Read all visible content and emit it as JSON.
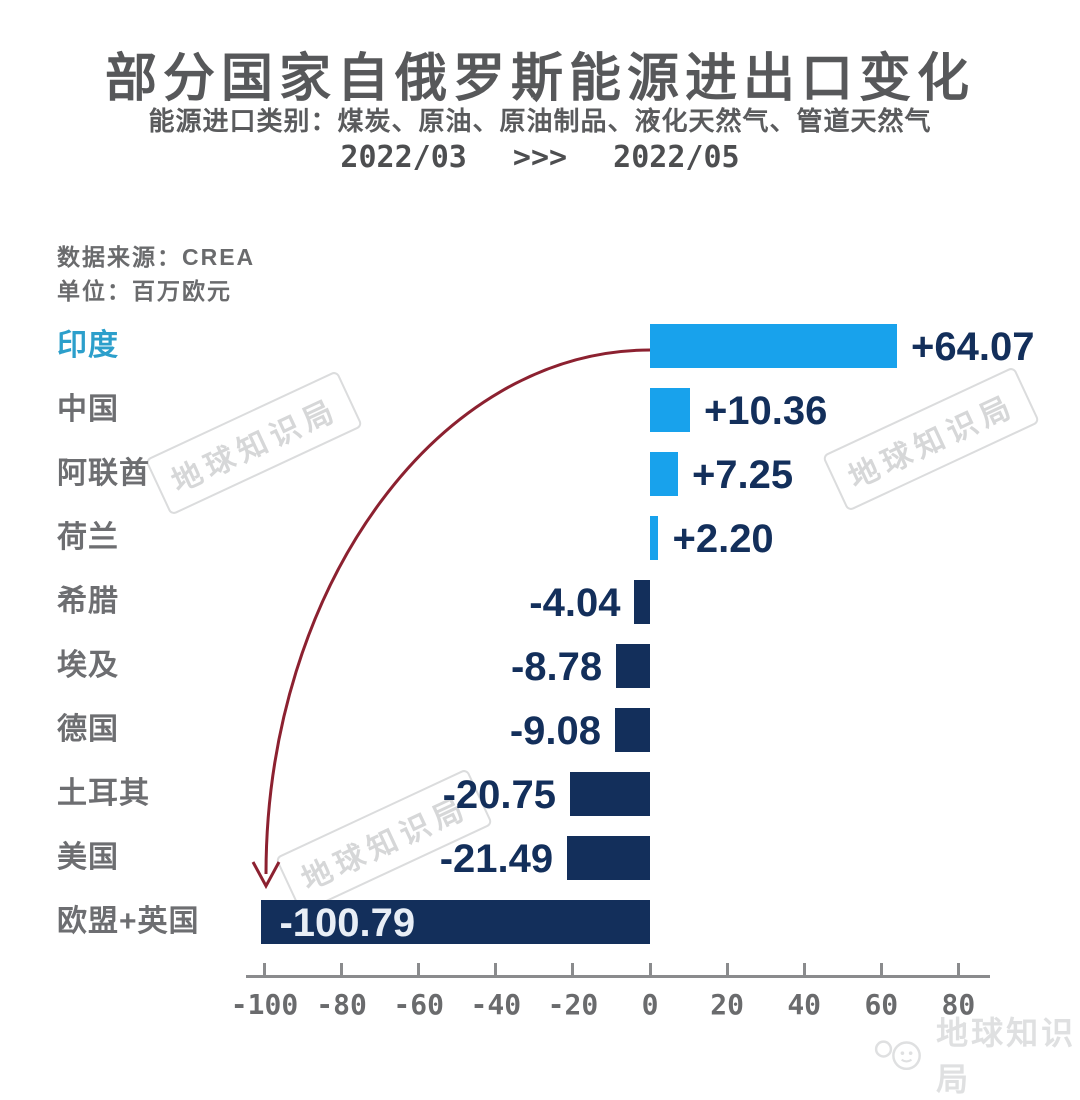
{
  "header": {
    "title": "部分国家自俄罗斯能源进出口变化",
    "subtitle": "能源进口类别：煤炭、原油、原油制品、液化天然气、管道天然气",
    "period_from": "2022/03",
    "period_arrow": ">>>",
    "period_to": "2022/05"
  },
  "meta": {
    "source_label": "数据来源：CREA",
    "unit_label": "单位：百万欧元"
  },
  "watermark": {
    "text": "地球知识局"
  },
  "logo": {
    "text": "地球知识局"
  },
  "chart_data": {
    "type": "bar",
    "orientation": "horizontal",
    "title": "部分国家自俄罗斯能源进出口变化",
    "unit": "百万欧元",
    "source": "CREA",
    "categories": [
      "印度",
      "中国",
      "阿联酋",
      "荷兰",
      "希腊",
      "埃及",
      "德国",
      "土耳其",
      "美国",
      "欧盟+英国"
    ],
    "values": [
      64.07,
      10.36,
      7.25,
      2.2,
      -4.04,
      -8.78,
      -9.08,
      -20.75,
      -21.49,
      -100.79
    ],
    "value_labels": [
      "+64.07",
      "+10.36",
      "+7.25",
      "+2.20",
      "-4.04",
      "-8.78",
      "-9.08",
      "-20.75",
      "-21.49",
      "-100.79"
    ],
    "x_ticks": [
      "-100",
      "-80",
      "-60",
      "-40",
      "-20",
      "0",
      "20",
      "40",
      "60",
      "80"
    ],
    "x_tick_values": [
      -100,
      -80,
      -60,
      -40,
      -20,
      0,
      20,
      40,
      60,
      80
    ],
    "xlim": [
      -105,
      87
    ],
    "grid": false,
    "legend": false,
    "highlight_category": "印度",
    "colors": {
      "positive_bar": "#18A2EC",
      "negative_bar": "#132F5B",
      "value_label": "#132F5B",
      "inside_label": "#E8EEF6",
      "highlight_category_label": "#2C9FCB",
      "arrow": "#8C2130"
    },
    "annotation": "curved arrow from 印度 bar to 欧盟+英国 bar"
  }
}
